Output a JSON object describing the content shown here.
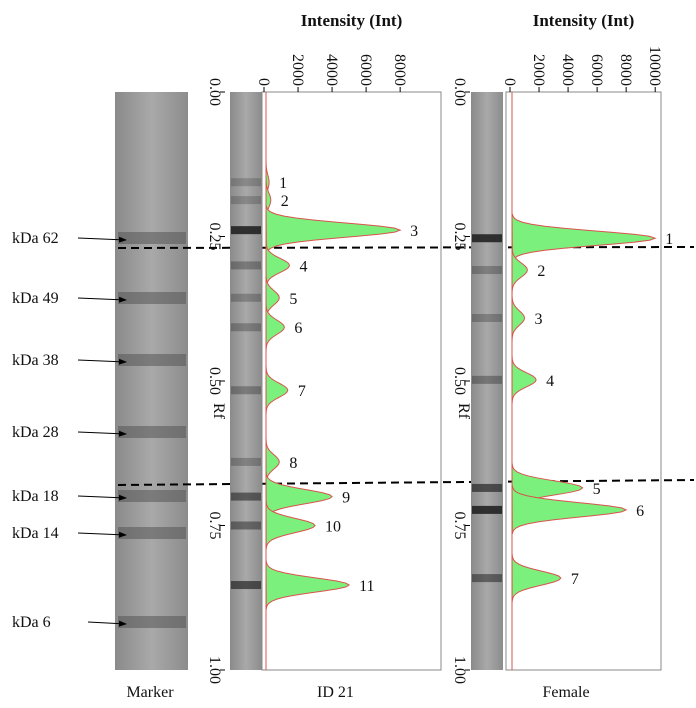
{
  "marker": {
    "caption": "Marker",
    "bands": [
      "kDa 62",
      "kDa 49",
      "kDa 38",
      "kDa 28",
      "kDa 18",
      "kDa 14",
      "kDa 6"
    ]
  },
  "chart_data": [
    {
      "type": "densitogram",
      "title": "Intensity (Int)",
      "caption": "ID 21",
      "xlabel": "Rf",
      "xlim": [
        0,
        1
      ],
      "xticks": [
        {
          "value": 0,
          "label": "0.00"
        },
        {
          "value": 0.25,
          "label": "0.25"
        },
        {
          "value": 0.5,
          "label": "0.50"
        },
        {
          "value": 0.75,
          "label": "0.75"
        },
        {
          "value": 1,
          "label": "1.00"
        }
      ],
      "ylim": [
        0,
        10400
      ],
      "yticks": [
        0,
        2000,
        4000,
        6000,
        8000
      ],
      "color": "#7cf07c",
      "line_color": "#d9534f",
      "categories": [
        "1",
        "2",
        "3",
        "4",
        "5",
        "6",
        "7",
        "8",
        "9",
        "10",
        "11"
      ],
      "x": [
        0.156,
        0.187,
        0.239,
        0.3,
        0.356,
        0.407,
        0.516,
        0.64,
        0.7,
        0.75,
        0.853
      ],
      "values": [
        300,
        400,
        8000,
        1500,
        900,
        1200,
        1400,
        900,
        4000,
        3000,
        5000
      ]
    },
    {
      "type": "densitogram",
      "title": "Intensity (Int)",
      "caption": "Female",
      "xlabel": "Rf",
      "xlim": [
        0,
        1
      ],
      "xticks": [
        {
          "value": 0,
          "label": "0.00"
        },
        {
          "value": 0.25,
          "label": "0.25"
        },
        {
          "value": 0.5,
          "label": "0.50"
        },
        {
          "value": 0.75,
          "label": "0.75"
        },
        {
          "value": 1,
          "label": "1.00"
        }
      ],
      "ylim": [
        0,
        10400
      ],
      "yticks": [
        0,
        2000,
        4000,
        6000,
        8000,
        10000
      ],
      "color": "#7cf07c",
      "line_color": "#d9534f",
      "categories": [
        "1",
        "2",
        "3",
        "4",
        "5",
        "6",
        "7"
      ],
      "x": [
        0.253,
        0.308,
        0.391,
        0.498,
        0.685,
        0.723,
        0.841
      ],
      "values": [
        10000,
        1200,
        1000,
        1800,
        5000,
        8000,
        3500
      ]
    }
  ]
}
